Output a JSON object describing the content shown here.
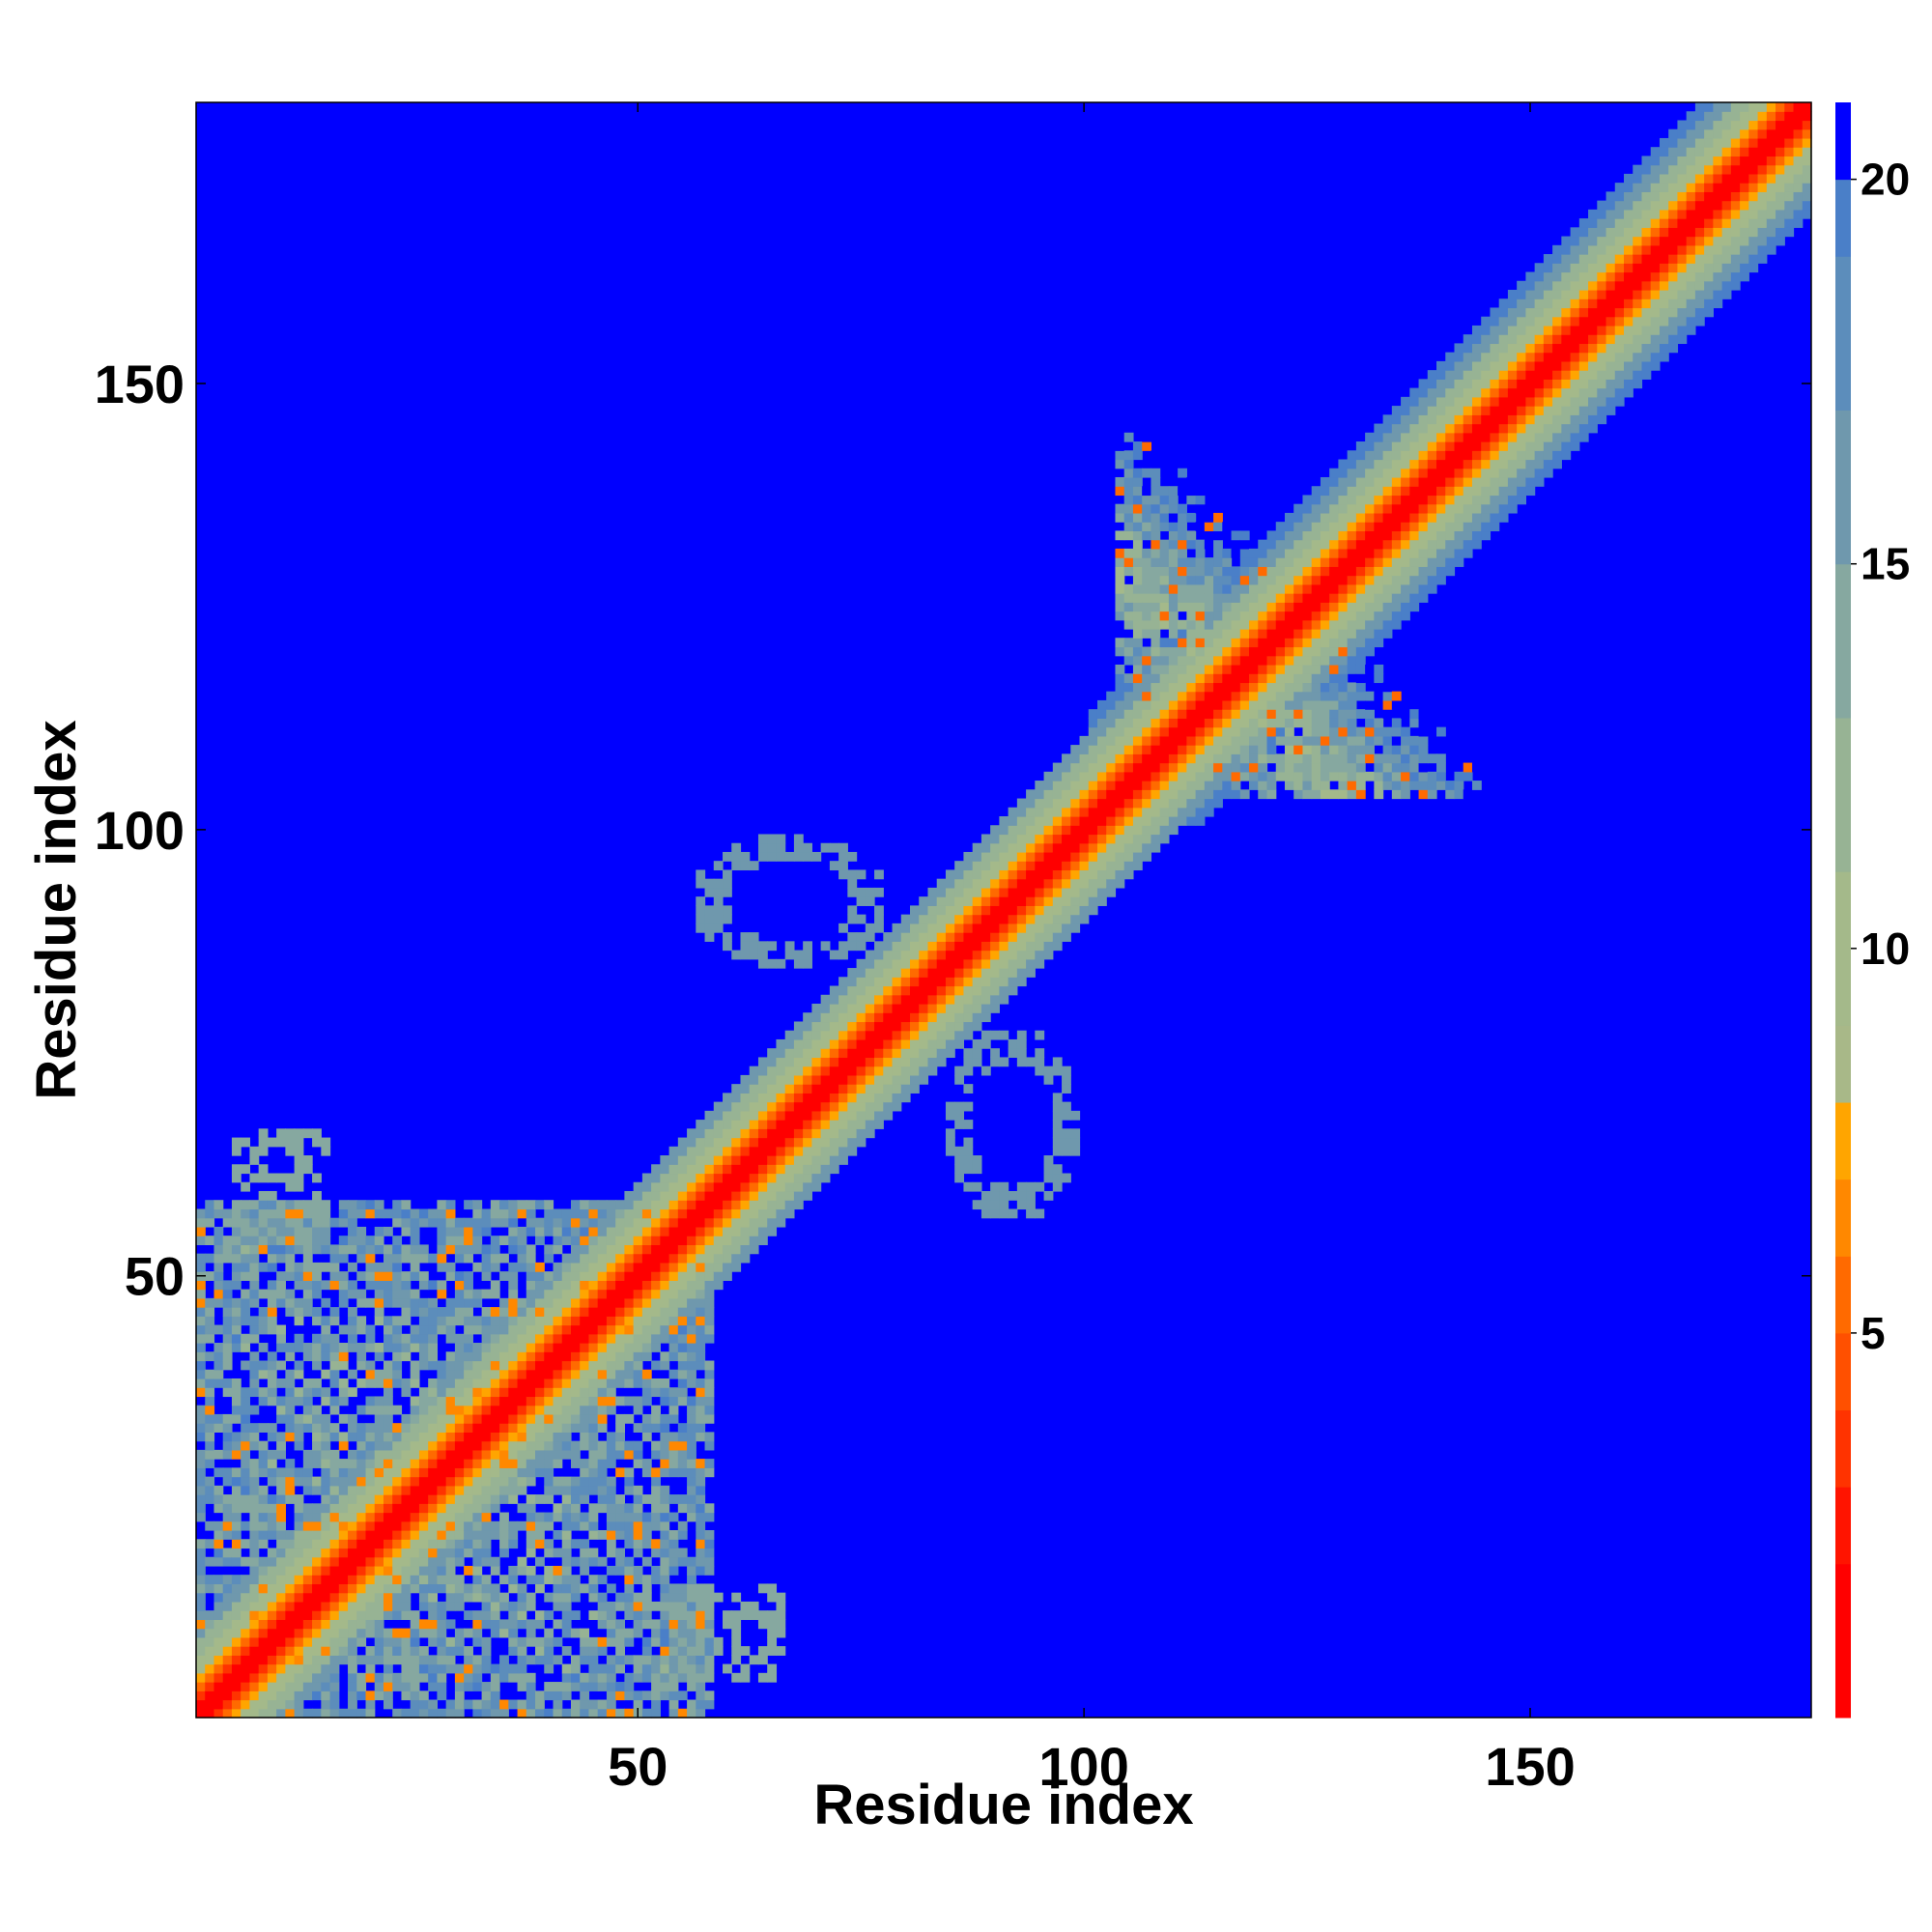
{
  "chart_data": {
    "type": "heatmap",
    "title": "",
    "xlabel": "Residue index",
    "ylabel": "Residue index",
    "n_residues": 181,
    "xlim": [
      1,
      181
    ],
    "ylim": [
      1,
      181
    ],
    "xticks": [
      50,
      100,
      150
    ],
    "yticks": [
      50,
      100,
      150
    ],
    "background_value": 21,
    "colorbar": {
      "range": [
        0,
        21
      ],
      "ticks": [
        5,
        10,
        15,
        20
      ],
      "levels": [
        {
          "max": 2,
          "color": "#ff0000"
        },
        {
          "max": 3,
          "color": "#ff1400"
        },
        {
          "max": 4,
          "color": "#ff3300"
        },
        {
          "max": 5,
          "color": "#ff5000"
        },
        {
          "max": 6,
          "color": "#ff6a00"
        },
        {
          "max": 7,
          "color": "#ff8800"
        },
        {
          "max": 8,
          "color": "#ffa500"
        },
        {
          "max": 9,
          "color": "#a8b888"
        },
        {
          "max": 11,
          "color": "#a4b98a"
        },
        {
          "max": 13,
          "color": "#97b394"
        },
        {
          "max": 15,
          "color": "#86a8a0"
        },
        {
          "max": 17,
          "color": "#6f98ad"
        },
        {
          "max": 19,
          "color": "#5c8dbb"
        },
        {
          "max": 20,
          "color": "#4a7fc8"
        },
        {
          "max": 21,
          "color": "#0000ff"
        }
      ]
    },
    "features": [
      {
        "kind": "diagonal_band",
        "description": "distance grows with |i-j| along the main diagonal"
      },
      {
        "kind": "antiparallel_block",
        "i_range": [
          104,
          172
        ],
        "sum": 233,
        "value": 15
      },
      {
        "kind": "contact_cluster",
        "i_range": [
          1,
          60
        ],
        "j_range": [
          1,
          60
        ],
        "value": 13
      },
      {
        "kind": "ring_contact",
        "center": [
          67,
          95
        ],
        "value": 16
      },
      {
        "kind": "ring_contact",
        "center": [
          95,
          67
        ],
        "value": 16
      },
      {
        "kind": "sparse_contacts",
        "center": [
          58,
          12
        ],
        "value": 14
      }
    ]
  }
}
